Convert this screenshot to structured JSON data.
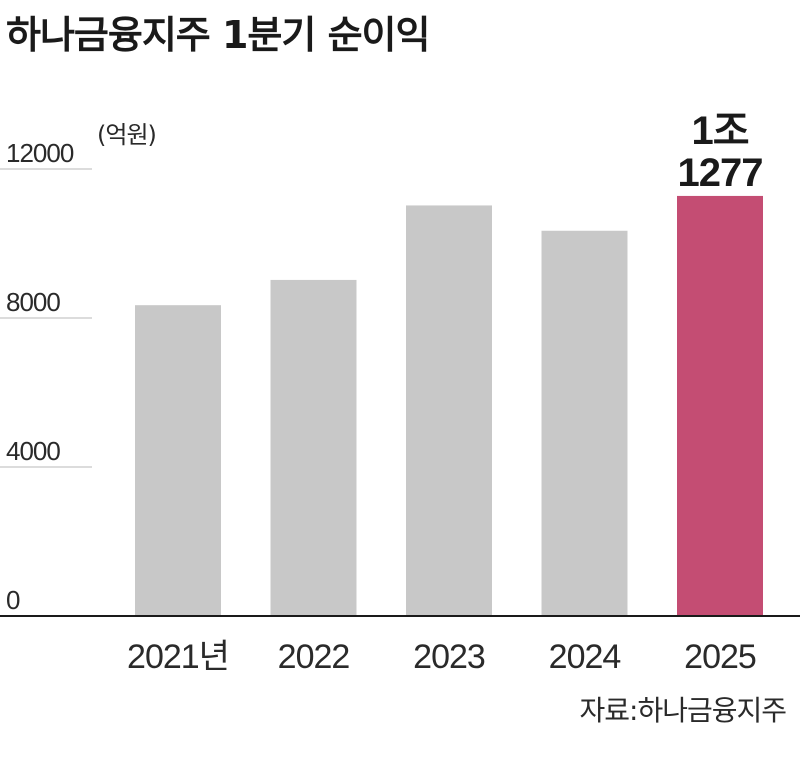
{
  "title": "하나금융지주 1분기 순이익",
  "source": "자료:하나금융지주",
  "colors": {
    "bar_default": "#c8c8c8",
    "bar_highlight": "#c44d73",
    "grid": "#b8b8b8",
    "axis": "#1a1a1a",
    "text": "#2a2a2a"
  },
  "chart_data": {
    "type": "bar",
    "title": "하나금융지주 1분기 순이익",
    "unit": "(억원)",
    "categories": [
      "2021년",
      "2022",
      "2023",
      "2024",
      "2025"
    ],
    "values": [
      8344,
      9022,
      11022,
      10342,
      11277
    ],
    "highlight_index": 4,
    "data_labels": [
      {
        "index": 4,
        "lines": [
          "1조",
          "1277"
        ]
      }
    ],
    "ylim": [
      0,
      12000
    ],
    "yticks": [
      0,
      4000,
      8000,
      12000
    ],
    "ytick_labels": [
      "0",
      "4000",
      "8000",
      "12000"
    ],
    "grid": true,
    "legend": "none"
  }
}
